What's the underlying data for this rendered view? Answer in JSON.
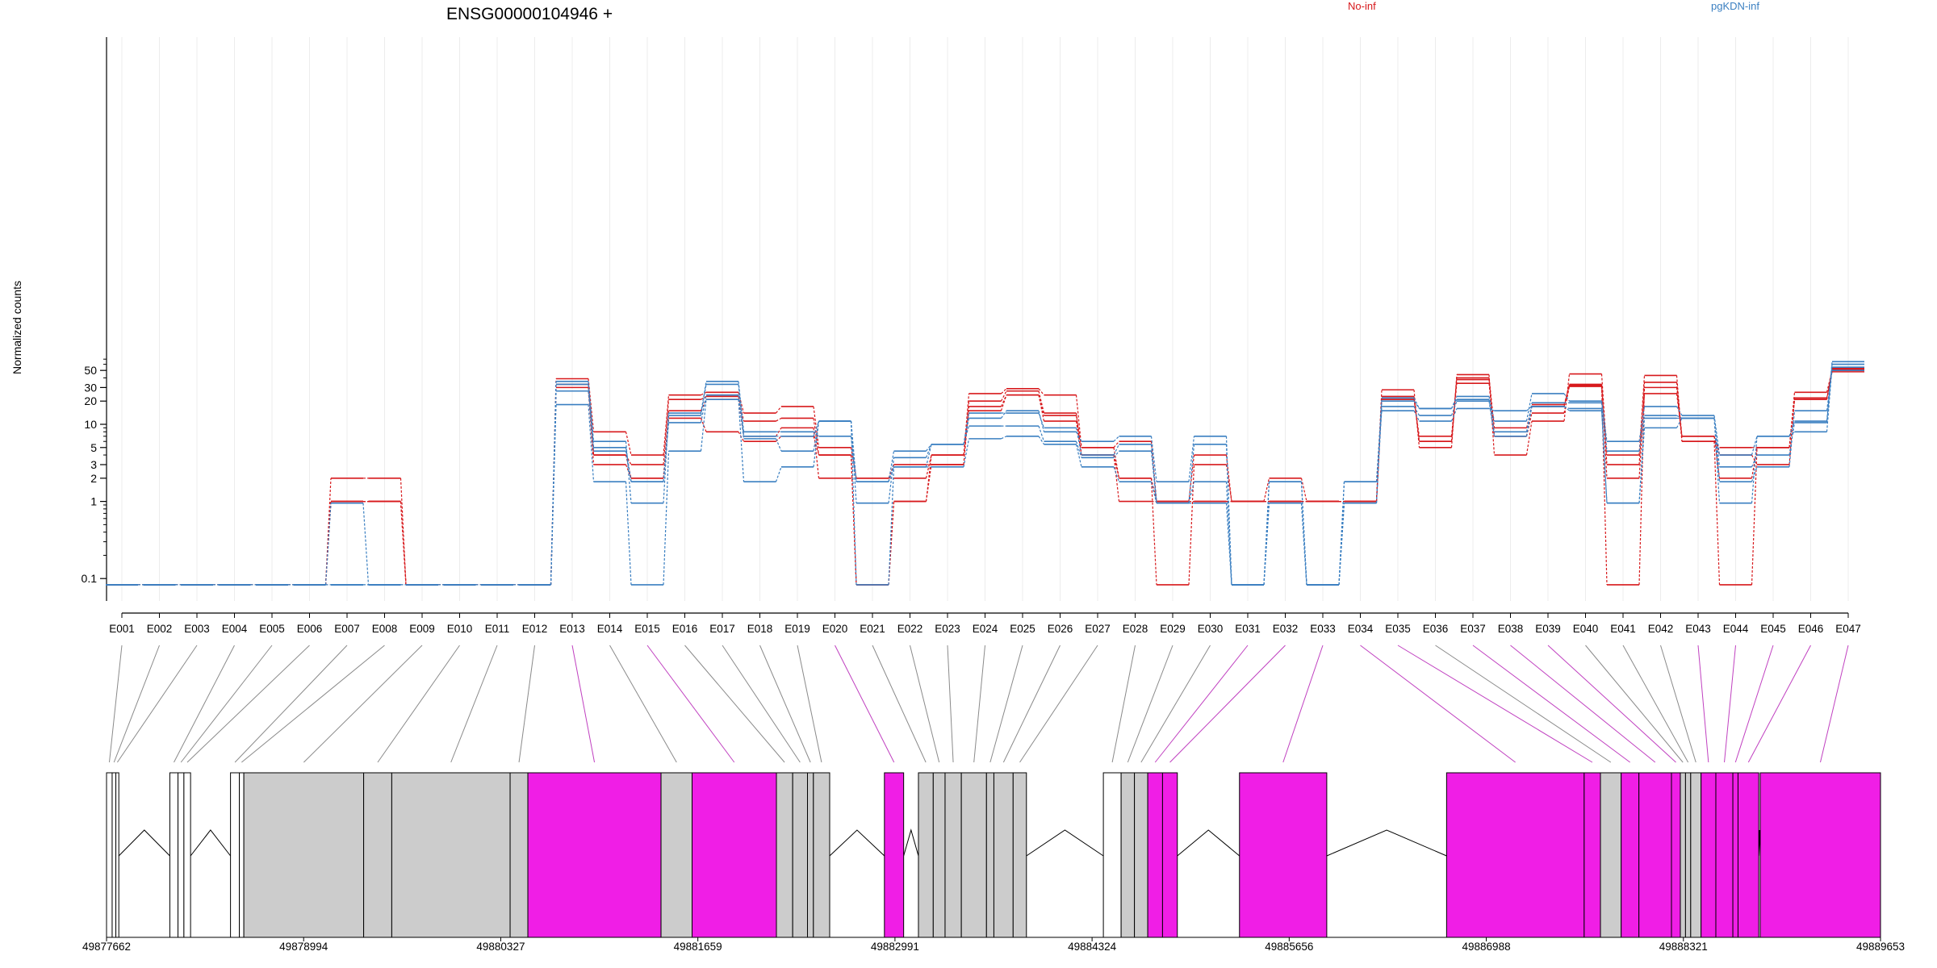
{
  "chart_data": {
    "type": "line",
    "title": "ENSG00000104946 +",
    "ylabel": "Normalized counts",
    "yscale": "log",
    "ylim": [
      0.08,
      80
    ],
    "yticks": [
      0.1,
      1,
      2,
      3,
      5,
      10,
      20,
      30,
      50
    ],
    "ytick_labels": [
      "0.1",
      "1",
      "2",
      "3",
      "5",
      "10",
      "20",
      "30",
      "50"
    ],
    "categories": [
      "E001",
      "E002",
      "E003",
      "E004",
      "E005",
      "E006",
      "E007",
      "E008",
      "E009",
      "E010",
      "E011",
      "E012",
      "E013",
      "E014",
      "E015",
      "E016",
      "E017",
      "E018",
      "E019",
      "E020",
      "E021",
      "E022",
      "E023",
      "E024",
      "E025",
      "E026",
      "E027",
      "E028",
      "E029",
      "E030",
      "E031",
      "E032",
      "E033",
      "E034",
      "E035",
      "E036",
      "E037",
      "E038",
      "E039",
      "E040",
      "E041",
      "E042",
      "E043",
      "E044",
      "E045",
      "E046",
      "E047"
    ],
    "colors": {
      "No-inf": "#d7191c",
      "pgKDN-inf": "#3a7fc1"
    },
    "legend": [
      {
        "name": "No-inf",
        "color": "#d7191c"
      },
      {
        "name": "pgKDN-inf",
        "color": "#3a7fc1"
      }
    ],
    "series": [
      {
        "group": "No-inf",
        "values": [
          0.083,
          0.083,
          0.083,
          0.083,
          0.083,
          0.083,
          2,
          2,
          0.083,
          0.083,
          0.083,
          0.083,
          39,
          8,
          4,
          24,
          26,
          14,
          17,
          5,
          2,
          2,
          4,
          25,
          29,
          24,
          5,
          6,
          1,
          4,
          1,
          2,
          1,
          1,
          28,
          5,
          44,
          4,
          11,
          45,
          4,
          43,
          6,
          5,
          5,
          26,
          50
        ]
      },
      {
        "group": "No-inf",
        "values": [
          0.083,
          0.083,
          0.083,
          0.083,
          0.083,
          0.083,
          1,
          1,
          0.083,
          0.083,
          0.083,
          0.083,
          33,
          4,
          3,
          21,
          23,
          11,
          12,
          4,
          0.083,
          1,
          3,
          20,
          27,
          14,
          4,
          2,
          0.083,
          3,
          1,
          1,
          1,
          1,
          23,
          6,
          40,
          9,
          17,
          33,
          3,
          35,
          7,
          4,
          3,
          22,
          48
        ]
      },
      {
        "group": "No-inf",
        "values": [
          0.083,
          0.083,
          0.083,
          0.083,
          0.083,
          0.083,
          1,
          1,
          0.083,
          0.083,
          0.083,
          0.083,
          30,
          3,
          2,
          15,
          21,
          7,
          9,
          2,
          2,
          3,
          3,
          17,
          24,
          13,
          5,
          2,
          1,
          1,
          1,
          1,
          1,
          1,
          21,
          7,
          38,
          7,
          18,
          32,
          2,
          25,
          7,
          2,
          5,
          21,
          51
        ]
      },
      {
        "group": "No-inf",
        "values": [
          0.083,
          0.083,
          0.083,
          0.083,
          0.083,
          0.083,
          1,
          1,
          0.083,
          0.083,
          0.083,
          0.083,
          27,
          4,
          2,
          12,
          8,
          6,
          7,
          4,
          0.083,
          1,
          4,
          15,
          24,
          11,
          4,
          1,
          1,
          1,
          1,
          1,
          1,
          1,
          22,
          6,
          34,
          7,
          14,
          31,
          0.083,
          30,
          6,
          0.083,
          5,
          21,
          53
        ]
      },
      {
        "group": "pgKDN-inf",
        "values": [
          0.083,
          0.083,
          0.083,
          0.083,
          0.083,
          0.083,
          0.083,
          0.083,
          0.083,
          0.083,
          0.083,
          0.083,
          36,
          6,
          0.95,
          14,
          36,
          8,
          8,
          7,
          1.8,
          4.5,
          5.5,
          12,
          15,
          8,
          6,
          7,
          1.8,
          7,
          0.083,
          1.8,
          0.083,
          0.95,
          22,
          16,
          23,
          11,
          25,
          20,
          6,
          17,
          13,
          4,
          7,
          11,
          65
        ]
      },
      {
        "group": "pgKDN-inf",
        "values": [
          0.083,
          0.083,
          0.083,
          0.083,
          0.083,
          0.083,
          0.95,
          0.083,
          0.083,
          0.083,
          0.083,
          0.083,
          33,
          5,
          1.8,
          13,
          33,
          7,
          7,
          11,
          0.95,
          3.7,
          5.5,
          14,
          14,
          9,
          4,
          5.5,
          0.95,
          5.5,
          0.083,
          0.95,
          0.083,
          1.8,
          20,
          16,
          21,
          8,
          19,
          19,
          4.5,
          13,
          12,
          2.8,
          4,
          10.5,
          60
        ]
      },
      {
        "group": "pgKDN-inf",
        "values": [
          0.083,
          0.083,
          0.083,
          0.083,
          0.083,
          0.083,
          0.083,
          0.083,
          0.083,
          0.083,
          0.083,
          0.083,
          27,
          4.5,
          1.8,
          10.5,
          24,
          6.5,
          4.5,
          11,
          1.8,
          2.8,
          5.5,
          9.5,
          9.5,
          6,
          3.7,
          4.5,
          0.95,
          1.8,
          0.083,
          1.8,
          0.083,
          0.95,
          17,
          13,
          20,
          7,
          17,
          16,
          0.95,
          12,
          12,
          1.8,
          2.8,
          15,
          50
        ]
      },
      {
        "group": "pgKDN-inf",
        "values": [
          0.083,
          0.083,
          0.083,
          0.083,
          0.083,
          0.083,
          0.083,
          0.083,
          0.083,
          0.083,
          0.083,
          0.083,
          18,
          1.8,
          0.083,
          4.5,
          21,
          1.8,
          2.8,
          11,
          0.083,
          2.8,
          2.8,
          6.5,
          7,
          5.5,
          2.8,
          1.8,
          0.95,
          0.95,
          0.083,
          0.95,
          0.083,
          1.8,
          15,
          11,
          16,
          15,
          17,
          15,
          0.95,
          9,
          12,
          0.95,
          7,
          8,
          55
        ]
      }
    ],
    "coordinate_labels": [
      "49877662",
      "49878994",
      "49880327",
      "49881659",
      "49882991",
      "49884324",
      "49885656",
      "49886988",
      "49888321",
      "49889653"
    ],
    "gene_model": {
      "genome_range": [
        49877662,
        49889653
      ],
      "exons": [
        {
          "id": "E001",
          "start": 49877662,
          "end": 49877700,
          "status": "none"
        },
        {
          "id": "E002",
          "start": 49877700,
          "end": 49877725,
          "status": "none"
        },
        {
          "id": "E003",
          "start": 49877725,
          "end": 49877745,
          "status": "none"
        },
        {
          "id": "E004",
          "start": 49878090,
          "end": 49878145,
          "status": "none"
        },
        {
          "id": "E005",
          "start": 49878145,
          "end": 49878185,
          "status": "none"
        },
        {
          "id": "E006",
          "start": 49878185,
          "end": 49878230,
          "status": "none"
        },
        {
          "id": "E007",
          "start": 49878500,
          "end": 49878560,
          "status": "none"
        },
        {
          "id": "E008",
          "start": 49878560,
          "end": 49878590,
          "status": "none"
        },
        {
          "id": "E009",
          "start": 49878590,
          "end": 49879400,
          "status": "expressed"
        },
        {
          "id": "E010",
          "start": 49879400,
          "end": 49879590,
          "status": "expressed"
        },
        {
          "id": "E011",
          "start": 49879590,
          "end": 49880390,
          "status": "expressed"
        },
        {
          "id": "E012",
          "start": 49880390,
          "end": 49880510,
          "status": "expressed"
        },
        {
          "id": "E013",
          "start": 49880510,
          "end": 49881410,
          "status": "significant"
        },
        {
          "id": "E014",
          "start": 49881410,
          "end": 49881620,
          "status": "expressed"
        },
        {
          "id": "E015",
          "start": 49881620,
          "end": 49882190,
          "status": "significant"
        },
        {
          "id": "E016",
          "start": 49882190,
          "end": 49882300,
          "status": "expressed"
        },
        {
          "id": "E017",
          "start": 49882300,
          "end": 49882400,
          "status": "expressed"
        },
        {
          "id": "E018",
          "start": 49882400,
          "end": 49882440,
          "status": "expressed"
        },
        {
          "id": "E019",
          "start": 49882440,
          "end": 49882550,
          "status": "expressed"
        },
        {
          "id": "E020",
          "start": 49882920,
          "end": 49883050,
          "status": "significant"
        },
        {
          "id": "E021",
          "start": 49883150,
          "end": 49883250,
          "status": "expressed"
        },
        {
          "id": "E022",
          "start": 49883250,
          "end": 49883330,
          "status": "expressed"
        },
        {
          "id": "E023",
          "start": 49883330,
          "end": 49883440,
          "status": "expressed"
        },
        {
          "id": "E024",
          "start": 49883440,
          "end": 49883610,
          "status": "expressed"
        },
        {
          "id": "E025",
          "start": 49883610,
          "end": 49883660,
          "status": "expressed"
        },
        {
          "id": "E026",
          "start": 49883660,
          "end": 49883790,
          "status": "expressed"
        },
        {
          "id": "E027",
          "start": 49883790,
          "end": 49883880,
          "status": "expressed"
        },
        {
          "id": "E028",
          "start": 49884400,
          "end": 49884520,
          "status": "none"
        },
        {
          "id": "E029",
          "start": 49884520,
          "end": 49884610,
          "status": "expressed"
        },
        {
          "id": "E030",
          "start": 49884610,
          "end": 49884700,
          "status": "expressed"
        },
        {
          "id": "E031",
          "start": 49884700,
          "end": 49884800,
          "status": "significant"
        },
        {
          "id": "E032",
          "start": 49884800,
          "end": 49884900,
          "status": "significant"
        },
        {
          "id": "E033",
          "start": 49885320,
          "end": 49885910,
          "status": "significant"
        },
        {
          "id": "E034",
          "start": 49886720,
          "end": 49887650,
          "status": "significant"
        },
        {
          "id": "E035",
          "start": 49887650,
          "end": 49887760,
          "status": "significant"
        },
        {
          "id": "E036",
          "start": 49887760,
          "end": 49887900,
          "status": "expressed"
        },
        {
          "id": "E037",
          "start": 49887900,
          "end": 49888020,
          "status": "significant"
        },
        {
          "id": "E038",
          "start": 49888020,
          "end": 49888240,
          "status": "significant"
        },
        {
          "id": "E039",
          "start": 49888240,
          "end": 49888300,
          "status": "significant"
        },
        {
          "id": "E040",
          "start": 49888300,
          "end": 49888335,
          "status": "expressed"
        },
        {
          "id": "E041",
          "start": 49888335,
          "end": 49888370,
          "status": "expressed"
        },
        {
          "id": "E042",
          "start": 49888370,
          "end": 49888440,
          "status": "expressed"
        },
        {
          "id": "E043",
          "start": 49888440,
          "end": 49888540,
          "status": "significant"
        },
        {
          "id": "E044",
          "start": 49888540,
          "end": 49888655,
          "status": "significant"
        },
        {
          "id": "E045",
          "start": 49888655,
          "end": 49888690,
          "status": "significant"
        },
        {
          "id": "E046",
          "start": 49888690,
          "end": 49888830,
          "status": "significant"
        },
        {
          "id": "E047",
          "start": 49888840,
          "end": 49889653,
          "status": "significant"
        }
      ],
      "status_colors": {
        "none": "#ffffff",
        "expressed": "#cccccc",
        "significant": "#f01ee6"
      },
      "introns": [
        [
          49877745,
          49878090
        ],
        [
          49878230,
          49878500
        ],
        [
          49882550,
          49882920
        ],
        [
          49883050,
          49883150
        ],
        [
          49883880,
          49884400
        ],
        [
          49884900,
          49885320
        ],
        [
          49885910,
          49886720
        ],
        [
          49888830,
          49888840
        ]
      ]
    }
  }
}
